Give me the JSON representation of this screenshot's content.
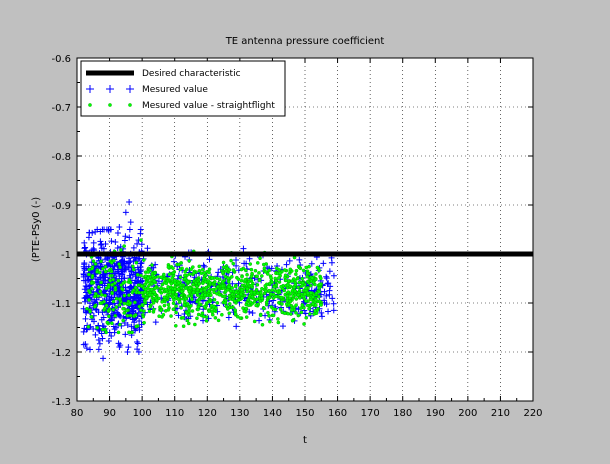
{
  "chart_data": {
    "type": "scatter",
    "title": "TE antenna pressure coefficient",
    "xlabel": "t",
    "ylabel": "(PTE-PSy0 (-)",
    "xlim": [
      80,
      220
    ],
    "ylim": [
      -1.3,
      -0.6
    ],
    "xticks": [
      80,
      90,
      100,
      110,
      120,
      130,
      140,
      150,
      160,
      170,
      180,
      190,
      200,
      210,
      220
    ],
    "yticks": [
      -1.3,
      -1.2,
      -1.1,
      -1,
      -0.9,
      -0.8,
      -0.7,
      -0.6
    ],
    "xtick_labels": [
      "80",
      "90",
      "100",
      "110",
      "120",
      "130",
      "140",
      "150",
      "160",
      "170",
      "180",
      "190",
      "200",
      "210",
      "220"
    ],
    "ytick_labels": [
      "-1.3",
      "-1.2",
      "-1.1",
      "-1",
      "-0.9",
      "-0.8",
      "-0.7",
      "-0.6"
    ],
    "grid": "dotted",
    "legend_position": "top-left",
    "series": [
      {
        "name": "Desired characteristic",
        "kind": "line",
        "color": "#000000",
        "x": [
          80,
          220
        ],
        "y": [
          -1.0,
          -1.0
        ]
      },
      {
        "name": "Mesured value",
        "kind": "scatter",
        "marker": "plus",
        "color": "#0000ff",
        "x_range": [
          81,
          159
        ],
        "dense_x_range": [
          82,
          100
        ],
        "y_center": -1.07,
        "y_spread": 0.06,
        "outliers": [
          {
            "x": 96.0,
            "y": -0.894
          },
          {
            "x": 95.0,
            "y": -0.915
          },
          {
            "x": 96.5,
            "y": -0.935
          },
          {
            "x": 93.0,
            "y": -0.945
          },
          {
            "x": 88.0,
            "y": -1.213
          },
          {
            "x": 84.0,
            "y": -1.195
          }
        ]
      },
      {
        "name": "Mesured value - straightflight",
        "kind": "scatter",
        "marker": "circle",
        "color": "#00ff00",
        "x_range": [
          83,
          157
        ],
        "dense_x_range": [
          100,
          155
        ],
        "y_center": -1.075,
        "y_spread": 0.05
      }
    ]
  }
}
